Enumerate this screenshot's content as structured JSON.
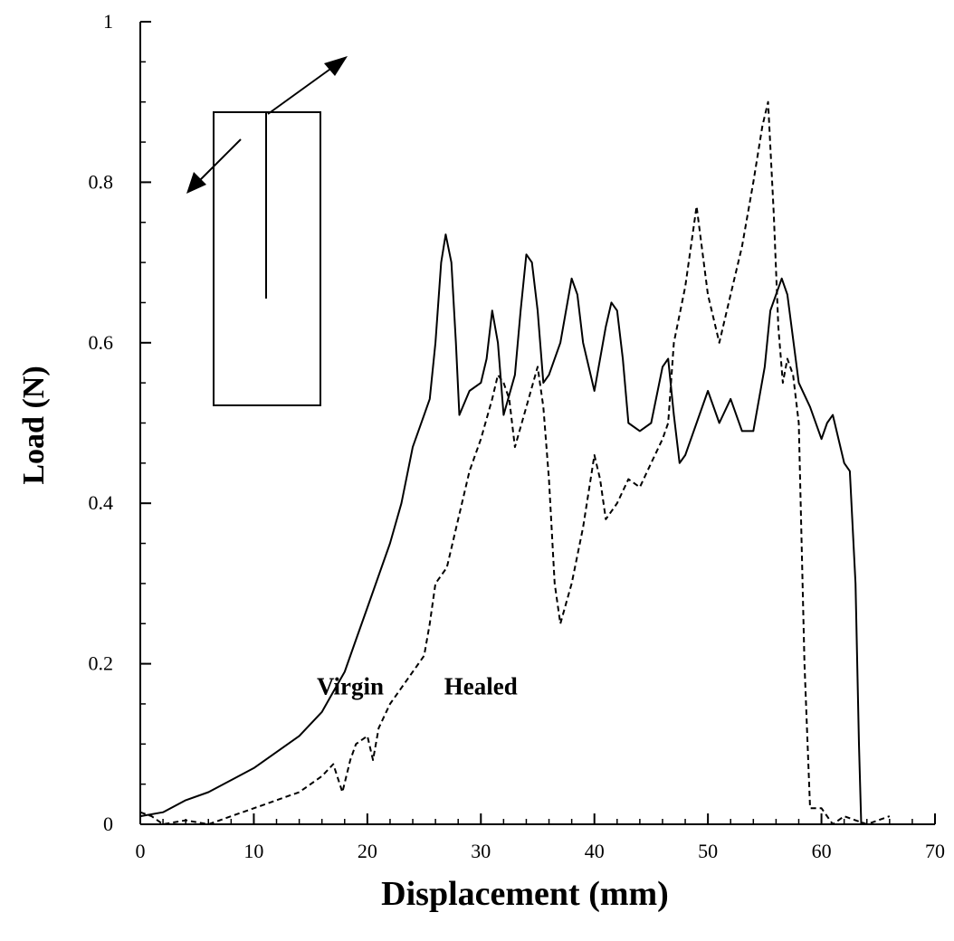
{
  "chart_data": {
    "type": "line",
    "title": "",
    "xlabel": "Displacement (mm)",
    "ylabel": "Load (N)",
    "xlim": [
      0,
      70
    ],
    "ylim": [
      0,
      1
    ],
    "x_ticks": [
      0,
      10,
      20,
      30,
      40,
      50,
      60,
      70
    ],
    "x_tick_labels": [
      "0",
      "10",
      "20",
      "30",
      "40",
      "50",
      "60",
      "70"
    ],
    "y_ticks": [
      0,
      0.2,
      0.4,
      0.6,
      0.8,
      1
    ],
    "y_tick_labels": [
      "0",
      "0.2",
      "0.4",
      "0.6",
      "0.8",
      "1"
    ],
    "grid": false,
    "legend": "none",
    "series": [
      {
        "name": "Virgin",
        "style": "solid",
        "color": "#000000",
        "points": [
          [
            0,
            0.01
          ],
          [
            2,
            0.015
          ],
          [
            4,
            0.03
          ],
          [
            6,
            0.04
          ],
          [
            8,
            0.055
          ],
          [
            10,
            0.07
          ],
          [
            12,
            0.09
          ],
          [
            14,
            0.11
          ],
          [
            16,
            0.14
          ],
          [
            17,
            0.165
          ],
          [
            18,
            0.19
          ],
          [
            19,
            0.23
          ],
          [
            20,
            0.27
          ],
          [
            21,
            0.31
          ],
          [
            22,
            0.35
          ],
          [
            23,
            0.4
          ],
          [
            24,
            0.47
          ],
          [
            25,
            0.51
          ],
          [
            25.5,
            0.53
          ],
          [
            26,
            0.6
          ],
          [
            26.5,
            0.7
          ],
          [
            26.9,
            0.735
          ],
          [
            27.4,
            0.7
          ],
          [
            27.8,
            0.6
          ],
          [
            28.1,
            0.51
          ],
          [
            29,
            0.54
          ],
          [
            30,
            0.55
          ],
          [
            30.5,
            0.58
          ],
          [
            31,
            0.64
          ],
          [
            31.5,
            0.6
          ],
          [
            32,
            0.51
          ],
          [
            33,
            0.56
          ],
          [
            33.5,
            0.64
          ],
          [
            34,
            0.71
          ],
          [
            34.5,
            0.7
          ],
          [
            35,
            0.64
          ],
          [
            35.5,
            0.55
          ],
          [
            36,
            0.56
          ],
          [
            37,
            0.6
          ],
          [
            38,
            0.68
          ],
          [
            38.5,
            0.66
          ],
          [
            39,
            0.6
          ],
          [
            40,
            0.54
          ],
          [
            41,
            0.62
          ],
          [
            41.5,
            0.65
          ],
          [
            42,
            0.64
          ],
          [
            42.5,
            0.58
          ],
          [
            43,
            0.5
          ],
          [
            44,
            0.49
          ],
          [
            45,
            0.5
          ],
          [
            46,
            0.57
          ],
          [
            46.5,
            0.58
          ],
          [
            47,
            0.51
          ],
          [
            47.5,
            0.45
          ],
          [
            48,
            0.46
          ],
          [
            49,
            0.5
          ],
          [
            50,
            0.54
          ],
          [
            51,
            0.5
          ],
          [
            52,
            0.53
          ],
          [
            53,
            0.49
          ],
          [
            54,
            0.49
          ],
          [
            55,
            0.57
          ],
          [
            55.5,
            0.64
          ],
          [
            56,
            0.66
          ],
          [
            56.5,
            0.68
          ],
          [
            57,
            0.66
          ],
          [
            58,
            0.55
          ],
          [
            59,
            0.52
          ],
          [
            60,
            0.48
          ],
          [
            60.5,
            0.5
          ],
          [
            61,
            0.51
          ],
          [
            62,
            0.45
          ],
          [
            62.5,
            0.44
          ],
          [
            63,
            0.3
          ],
          [
            63.3,
            0.1
          ],
          [
            63.5,
            0.0
          ]
        ]
      },
      {
        "name": "Healed",
        "style": "dashed",
        "color": "#000000",
        "points": [
          [
            0,
            0.015
          ],
          [
            1,
            0.01
          ],
          [
            2,
            0.0
          ],
          [
            4,
            0.005
          ],
          [
            6,
            0.0
          ],
          [
            8,
            0.01
          ],
          [
            10,
            0.02
          ],
          [
            12,
            0.03
          ],
          [
            14,
            0.04
          ],
          [
            16,
            0.06
          ],
          [
            17,
            0.075
          ],
          [
            17.8,
            0.04
          ],
          [
            18.5,
            0.08
          ],
          [
            19,
            0.1
          ],
          [
            20,
            0.11
          ],
          [
            20.5,
            0.08
          ],
          [
            21,
            0.12
          ],
          [
            22,
            0.15
          ],
          [
            23,
            0.17
          ],
          [
            24,
            0.19
          ],
          [
            25,
            0.21
          ],
          [
            25.5,
            0.25
          ],
          [
            26,
            0.3
          ],
          [
            27,
            0.32
          ],
          [
            28,
            0.38
          ],
          [
            29,
            0.44
          ],
          [
            30,
            0.48
          ],
          [
            31,
            0.53
          ],
          [
            31.5,
            0.56
          ],
          [
            32,
            0.55
          ],
          [
            32.5,
            0.53
          ],
          [
            33,
            0.47
          ],
          [
            34,
            0.52
          ],
          [
            35,
            0.57
          ],
          [
            35.5,
            0.52
          ],
          [
            36,
            0.43
          ],
          [
            36.5,
            0.3
          ],
          [
            37,
            0.25
          ],
          [
            38,
            0.3
          ],
          [
            39,
            0.37
          ],
          [
            40,
            0.46
          ],
          [
            40.5,
            0.43
          ],
          [
            41,
            0.38
          ],
          [
            42,
            0.4
          ],
          [
            43,
            0.43
          ],
          [
            44,
            0.42
          ],
          [
            45,
            0.45
          ],
          [
            46,
            0.48
          ],
          [
            46.5,
            0.5
          ],
          [
            47,
            0.6
          ],
          [
            48,
            0.67
          ],
          [
            49,
            0.77
          ],
          [
            50,
            0.66
          ],
          [
            51,
            0.6
          ],
          [
            52,
            0.66
          ],
          [
            53,
            0.72
          ],
          [
            54,
            0.8
          ],
          [
            54.8,
            0.87
          ],
          [
            55.3,
            0.9
          ],
          [
            55.8,
            0.76
          ],
          [
            56.2,
            0.62
          ],
          [
            56.6,
            0.55
          ],
          [
            57,
            0.58
          ],
          [
            57.5,
            0.56
          ],
          [
            58,
            0.5
          ],
          [
            58.5,
            0.2
          ],
          [
            59,
            0.02
          ],
          [
            60,
            0.02
          ],
          [
            61,
            0.0
          ],
          [
            62,
            0.01
          ],
          [
            64,
            0.0
          ],
          [
            66,
            0.01
          ]
        ]
      }
    ],
    "annotations": [
      {
        "text": "Virgin",
        "x": 18.5,
        "y": 0.2
      },
      {
        "text": "Healed",
        "x": 30,
        "y": 0.2
      }
    ]
  }
}
